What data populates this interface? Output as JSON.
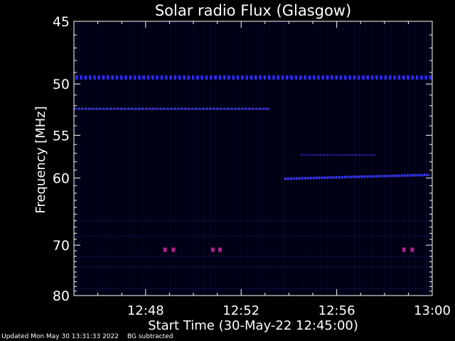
{
  "chart_data": {
    "type": "heatmap",
    "title": "Solar radio Flux (Glasgow)",
    "xlabel": "Start Time (30-May-22 12:45:00)",
    "ylabel": "Frequency [MHz]",
    "x_start": "12:45",
    "x_end": "13:00",
    "xlim_minutes": [
      0,
      15
    ],
    "xticks": [
      "12:48",
      "12:52",
      "12:56",
      "13:00"
    ],
    "xtick_values_minutes": [
      3,
      7,
      11,
      15
    ],
    "ylim": [
      45,
      80
    ],
    "yticks": [
      45,
      50,
      55,
      60,
      70,
      80
    ],
    "y_scale": "reciprocal (frequency increases downward)",
    "colormap": {
      "background": "#000015",
      "low": "#12127a",
      "mid": "#2b2bff",
      "high": "#b0208a"
    },
    "features": [
      {
        "name": "persistent band",
        "freq_mhz": 49.4,
        "minutes": [
          0,
          15
        ],
        "color": "#2b2bff"
      },
      {
        "name": "band",
        "freq_mhz": 52.3,
        "minutes": [
          0,
          8.2
        ],
        "color": "#3535c8"
      },
      {
        "name": "drifting band",
        "freq_mhz": [
          60.1,
          59.6
        ],
        "minutes": [
          8.8,
          14.9
        ],
        "color": "#3a3aff"
      },
      {
        "name": "faint band",
        "freq_mhz": 57.2,
        "minutes": [
          9.5,
          12.6
        ],
        "color": "#22229a"
      },
      {
        "name": "bursts",
        "freq_mhz": 70.8,
        "minutes": [
          3.8,
          4.15,
          5.8,
          6.1,
          13.8,
          14.15
        ],
        "color": "#b0208a"
      }
    ]
  },
  "footer": {
    "updated": "Updated Mon May 30 13:31:33 2022",
    "note": "BG subtracted"
  }
}
